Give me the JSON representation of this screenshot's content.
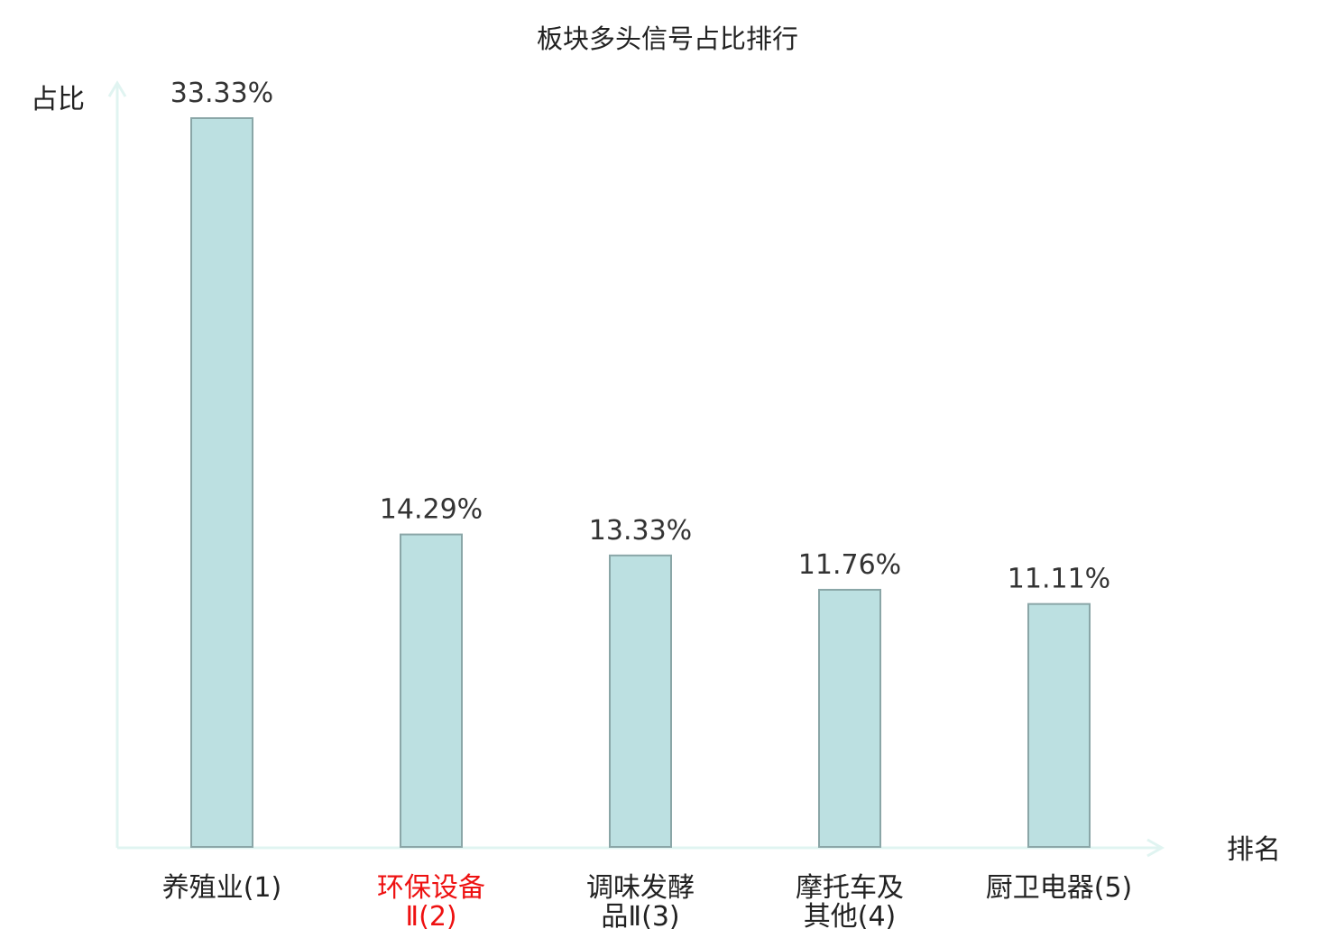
{
  "chart_data": {
    "type": "bar",
    "title": "板块多头信号占比排行",
    "ylabel": "占比",
    "xlabel": "排名",
    "categories": [
      [
        "养殖业(1)"
      ],
      [
        "环保设备",
        "Ⅱ(2)"
      ],
      [
        "调味发酵",
        "品Ⅱ(3)"
      ],
      [
        "摩托车及",
        "其他(4)"
      ],
      [
        "厨卫电器(5)"
      ]
    ],
    "values": [
      33.33,
      14.29,
      13.33,
      11.76,
      11.11
    ],
    "value_labels": [
      "33.33%",
      "14.29%",
      "13.33%",
      "11.76%",
      "11.11%"
    ],
    "highlight_index": 1,
    "ylim": [
      0,
      33.33
    ],
    "grid": false,
    "legend": "none",
    "colors": {
      "bar_fill": "#bce0e1",
      "bar_stroke": "#8aa6a7",
      "axis": "#e0f4f1",
      "highlight_text": "#ee1111",
      "text": "#222222"
    }
  }
}
